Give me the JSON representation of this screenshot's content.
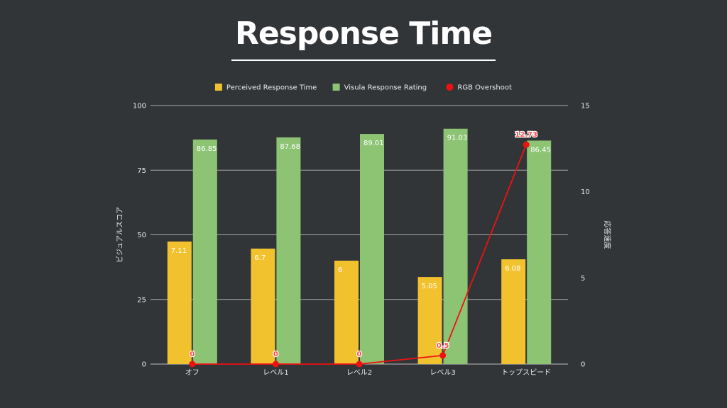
{
  "title": "Response Time",
  "chart_data": {
    "type": "bar",
    "categories": [
      "オフ",
      "レベル1",
      "レベル2",
      "レベル3",
      "トップスピード"
    ],
    "series": [
      {
        "name": "Perceived Response Time",
        "axis": "right",
        "kind": "bar",
        "color": "#f2c12e",
        "values": [
          7.11,
          6.7,
          6,
          5.05,
          6.08
        ]
      },
      {
        "name": "Visula Response Rating",
        "axis": "left",
        "kind": "bar",
        "color": "#8cc474",
        "values": [
          86.85,
          87.68,
          89.01,
          91.03,
          86.45
        ]
      },
      {
        "name": "RGB Overshoot",
        "axis": "right",
        "kind": "line",
        "color": "#ee1111",
        "values": [
          0,
          0,
          0,
          0.5,
          12.73
        ]
      }
    ],
    "left_axis": {
      "label": "ビジュアルスコア",
      "ylim": [
        0,
        100
      ],
      "ticks": [
        0,
        25,
        50,
        75,
        100
      ]
    },
    "right_axis": {
      "label": "応答速度",
      "ylim": [
        0,
        15
      ],
      "ticks": [
        0,
        5,
        10,
        15
      ]
    },
    "grid": true,
    "legend_position": "top"
  }
}
